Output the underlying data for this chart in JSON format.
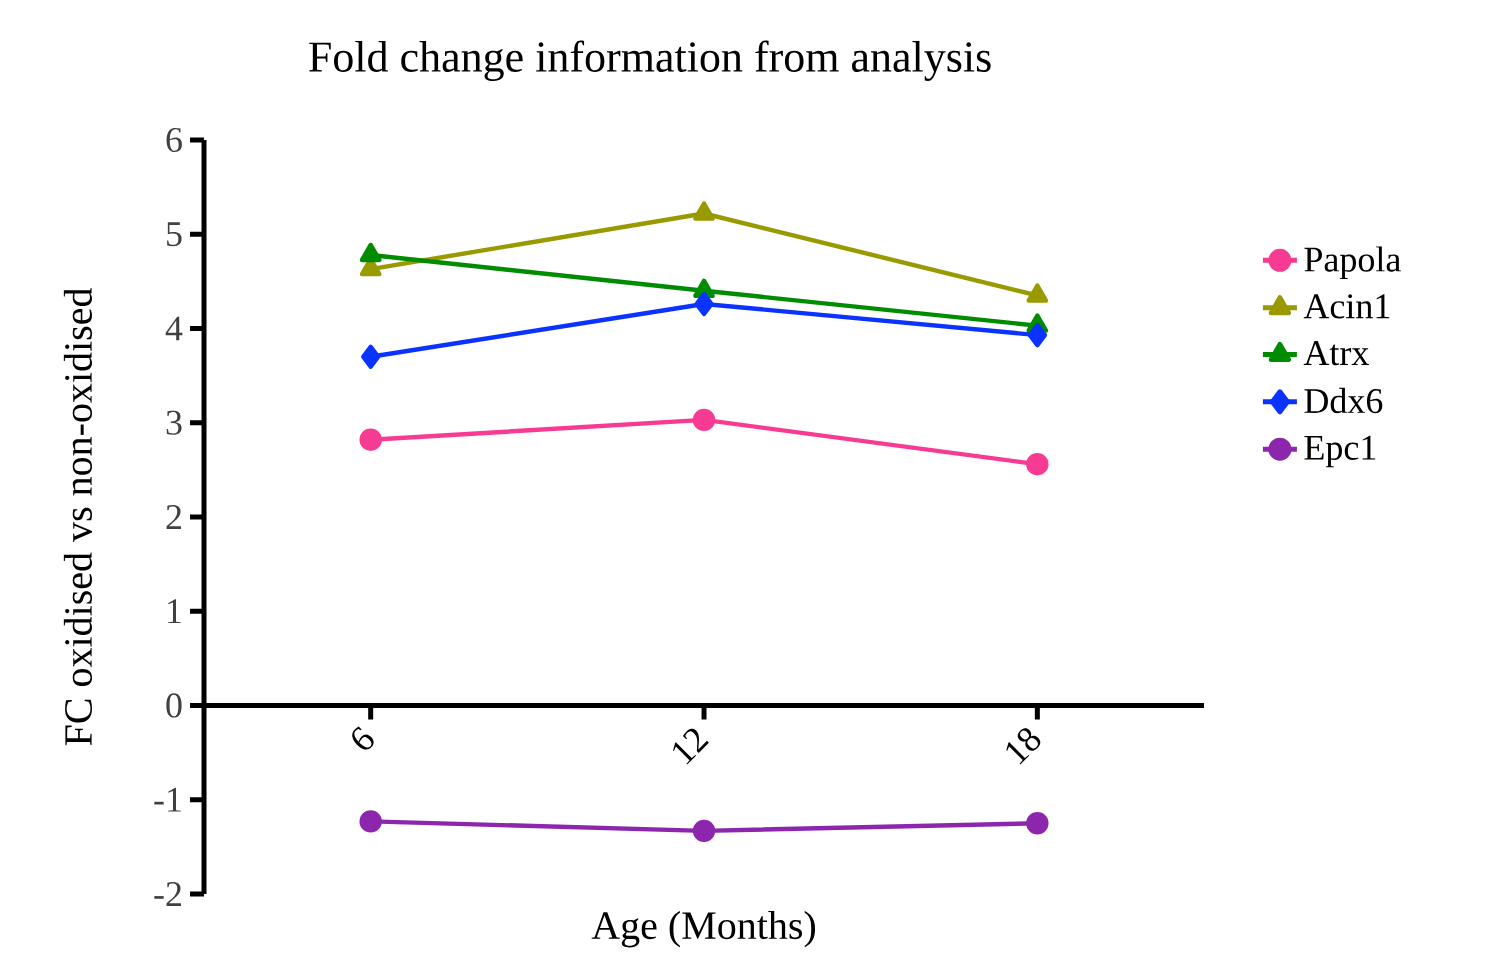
{
  "chart_data": {
    "type": "line",
    "title": "Fold change information from analysis",
    "xlabel": "Age (Months)",
    "ylabel": "FC oxidised vs non-oxidised",
    "categories": [
      "6",
      "12",
      "18"
    ],
    "ylim": [
      -2,
      6
    ],
    "yticks": [
      -2,
      -1,
      0,
      1,
      2,
      3,
      4,
      5,
      6
    ],
    "legend": "right",
    "line_style": "solid",
    "series": [
      {
        "name": "Papola",
        "color": "#f73b93",
        "marker": "circle",
        "values": [
          2.82,
          3.03,
          2.56
        ]
      },
      {
        "name": "Acin1",
        "color": "#999900",
        "marker": "triangle",
        "values": [
          4.63,
          5.22,
          4.35
        ]
      },
      {
        "name": "Atrx",
        "color": "#008c00",
        "marker": "triangle",
        "values": [
          4.78,
          4.4,
          4.03
        ]
      },
      {
        "name": "Ddx6",
        "color": "#0a33ff",
        "marker": "diamond",
        "values": [
          3.7,
          4.26,
          3.93
        ]
      },
      {
        "name": "Epc1",
        "color": "#8c27ad",
        "marker": "circle",
        "values": [
          -1.23,
          -1.33,
          -1.25
        ]
      }
    ]
  }
}
